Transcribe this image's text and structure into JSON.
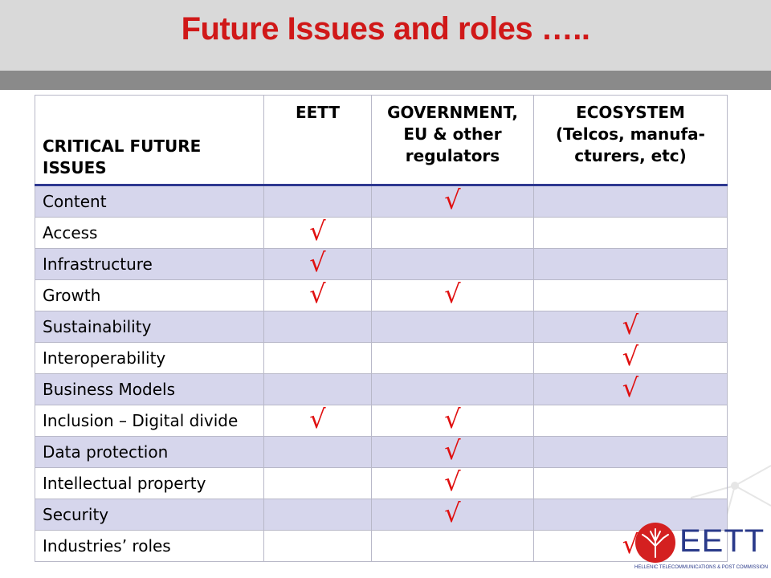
{
  "title": "Future Issues and roles …..",
  "table": {
    "headers": [
      [
        "CRITICAL FUTURE",
        "ISSUES"
      ],
      [
        "EETT"
      ],
      [
        "GOVERNMENT,",
        "EU  & other",
        "regulators"
      ],
      [
        "ECOSYSTEM",
        "(Telcos,  manufa-",
        "cturers, etc)"
      ]
    ],
    "rows": [
      {
        "label": "Content",
        "marks": [
          false,
          true,
          false
        ]
      },
      {
        "label": "Access",
        "marks": [
          true,
          false,
          false
        ]
      },
      {
        "label": "Infrastructure",
        "marks": [
          true,
          false,
          false
        ]
      },
      {
        "label": "Growth",
        "marks": [
          true,
          true,
          false
        ]
      },
      {
        "label": "Sustainability",
        "marks": [
          false,
          false,
          true
        ]
      },
      {
        "label": "Interoperability",
        "marks": [
          false,
          false,
          true
        ]
      },
      {
        "label": "Business Models",
        "marks": [
          false,
          false,
          true
        ]
      },
      {
        "label": "Inclusion – Digital divide",
        "marks": [
          true,
          true,
          false
        ]
      },
      {
        "label": "Data protection",
        "marks": [
          false,
          true,
          false
        ]
      },
      {
        "label": "Intellectual property",
        "marks": [
          false,
          true,
          false
        ]
      },
      {
        "label": "Security",
        "marks": [
          false,
          true,
          false
        ]
      },
      {
        "label": "Industries’ roles",
        "marks": [
          false,
          false,
          true
        ]
      }
    ],
    "check_symbol": "√"
  },
  "logo": {
    "wordmark": "EETT",
    "subtitle": "HELLENIC TELECOMMUNICATIONS & POST COMMISSION",
    "emblem_color": "#d42020",
    "text_color": "#2a3a8a"
  },
  "colors": {
    "title": "#d01818",
    "check": "#e01010",
    "row_shade": "#d6d6ec",
    "header_rule": "#2e3890"
  }
}
